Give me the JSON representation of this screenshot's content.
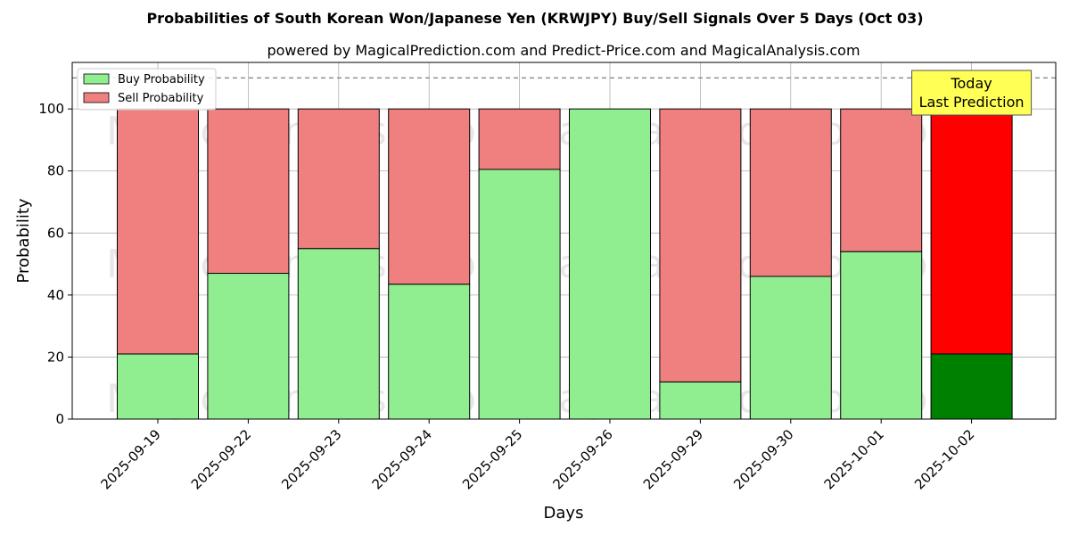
{
  "title": "Probabilities of South Korean Won/Japanese Yen (KRWJPY) Buy/Sell Signals Over 5 Days (Oct 03)",
  "subtitle": "powered by MagicalPrediction.com and Predict-Price.com and MagicalAnalysis.com",
  "watermarks": [
    "MagicalAnalysis.com",
    "MagicalPrediction.com"
  ],
  "colors": {
    "buy": "#90ee90",
    "sell": "#f08080",
    "buy_today": "#008000",
    "sell_today": "#ff0000",
    "annotation_bg": "#ffff55",
    "grid": "#b0b0b0",
    "threshold_line": "#808080"
  },
  "chart_data": {
    "type": "bar",
    "stacked": true,
    "categories": [
      "2025-09-19",
      "2025-09-22",
      "2025-09-23",
      "2025-09-24",
      "2025-09-25",
      "2025-09-26",
      "2025-09-29",
      "2025-09-30",
      "2025-10-01",
      "2025-10-02"
    ],
    "series": [
      {
        "name": "Buy Probability",
        "values": [
          21,
          47,
          55,
          43.5,
          80.5,
          100,
          12,
          46,
          54,
          21
        ]
      },
      {
        "name": "Sell Probability",
        "values": [
          79,
          53,
          45,
          56.5,
          19.5,
          0,
          88,
          54,
          46,
          79
        ]
      }
    ],
    "xlabel": "Days",
    "ylabel": "Probability",
    "ylim": [
      0,
      115
    ],
    "yticks": [
      0,
      20,
      40,
      60,
      80,
      100
    ],
    "grid": true,
    "legend_position": "top-left",
    "threshold_line": 110,
    "annotation": {
      "lines": [
        "Today",
        "Last Prediction"
      ],
      "category": "2025-10-02"
    },
    "highlight_category": "2025-10-02"
  }
}
